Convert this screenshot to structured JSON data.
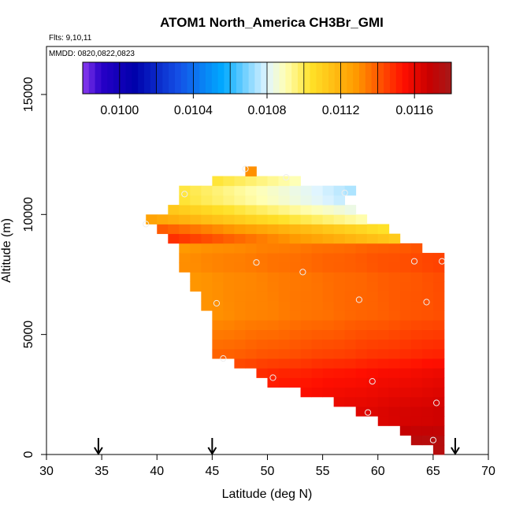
{
  "chart_data": {
    "type": "heatmap",
    "title": "ATOM1 North_America CH3Br_GMI",
    "annotations": {
      "flights": "Flts: 9,10,11",
      "dates": "MMDD: 0820,0822,0823"
    },
    "xlabel": "Latitude (deg N)",
    "ylabel": "Altitude (m)",
    "xlim": [
      30,
      70
    ],
    "ylim": [
      0,
      17000
    ],
    "x_ticks": [
      "30",
      "35",
      "40",
      "45",
      "50",
      "55",
      "60",
      "65",
      "70"
    ],
    "y_ticks": [
      "0",
      "5000",
      "10000",
      "15000"
    ],
    "colorbar": {
      "range": [
        0.0098,
        0.0118
      ],
      "tick_values": [
        0.01,
        0.0104,
        0.0108,
        0.0112,
        0.0116
      ],
      "tick_labels": [
        "0.0100",
        "0.0104",
        "0.0108",
        "0.0112",
        "0.0116"
      ]
    },
    "grid": false,
    "cell_size": {
      "lat_deg": 1.0,
      "alt_m": 400
    },
    "vertical_profile_latitudes": [
      34.7,
      45.0,
      67.0
    ],
    "profiles": [
      {
        "alt_min": 0,
        "alt_max": 400,
        "lat_min": 65,
        "lat_max": 66,
        "value": 0.01168
      },
      {
        "alt_min": 400,
        "alt_max": 800,
        "lat_min": 63,
        "lat_max": 66,
        "value": 0.01168
      },
      {
        "alt_min": 800,
        "alt_max": 1200,
        "lat_min": 62,
        "lat_max": 66,
        "value": 0.01164
      },
      {
        "alt_min": 1200,
        "alt_max": 1600,
        "lat_min": 60,
        "lat_max": 66,
        "value": 0.0116
      },
      {
        "alt_min": 1600,
        "alt_max": 2000,
        "lat_min": 58,
        "lat_max": 66,
        "value": 0.0116
      },
      {
        "alt_min": 2000,
        "alt_max": 2400,
        "lat_min": 56,
        "lat_max": 66,
        "value": 0.01158
      },
      {
        "alt_min": 2400,
        "alt_max": 2800,
        "lat_min": 53,
        "lat_max": 66,
        "value": 0.01156
      },
      {
        "alt_min": 2800,
        "alt_max": 3200,
        "lat_min": 50,
        "lat_max": 66,
        "value": 0.01154
      },
      {
        "alt_min": 3200,
        "alt_max": 3600,
        "lat_min": 49,
        "lat_max": 66,
        "value": 0.01152
      },
      {
        "alt_min": 3600,
        "alt_max": 4000,
        "lat_min": 47,
        "lat_max": 66,
        "value": 0.01148
      },
      {
        "alt_min": 4000,
        "alt_max": 4400,
        "lat_min": 45,
        "lat_max": 66,
        "value": 0.01144
      },
      {
        "alt_min": 4400,
        "alt_max": 4800,
        "lat_min": 45,
        "lat_max": 66,
        "value": 0.01142
      },
      {
        "alt_min": 4800,
        "alt_max": 5200,
        "lat_min": 45,
        "lat_max": 66,
        "value": 0.0114
      },
      {
        "alt_min": 5200,
        "alt_max": 5600,
        "lat_min": 45,
        "lat_max": 66,
        "value": 0.01138
      },
      {
        "alt_min": 5600,
        "alt_max": 6000,
        "lat_min": 45,
        "lat_max": 66,
        "value": 0.01136
      },
      {
        "alt_min": 6000,
        "alt_max": 6400,
        "lat_min": 44,
        "lat_max": 66,
        "value": 0.01136
      },
      {
        "alt_min": 6400,
        "alt_max": 6800,
        "lat_min": 44,
        "lat_max": 66,
        "value": 0.01136
      },
      {
        "alt_min": 6800,
        "alt_max": 7200,
        "lat_min": 43,
        "lat_max": 66,
        "value": 0.01136
      },
      {
        "alt_min": 7200,
        "alt_max": 7600,
        "lat_min": 43,
        "lat_max": 66,
        "value": 0.01136
      },
      {
        "alt_min": 7600,
        "alt_max": 8000,
        "lat_min": 42,
        "lat_max": 66,
        "value": 0.01138
      },
      {
        "alt_min": 8000,
        "alt_max": 8400,
        "lat_min": 42,
        "lat_max": 66,
        "value": 0.01138
      },
      {
        "alt_min": 8400,
        "alt_max": 8800,
        "lat_min": 42,
        "lat_max": 64,
        "value": 0.01136
      },
      {
        "alt_min": 8800,
        "alt_max": 9200,
        "lat_min": 41,
        "lat_max": 62,
        "value": 0.0113
      },
      {
        "alt_min": 9200,
        "alt_max": 9600,
        "lat_min": 40,
        "lat_max": 61,
        "value": 0.01122
      },
      {
        "alt_min": 9600,
        "alt_max": 10000,
        "lat_min": 39,
        "lat_max": 59,
        "value": 0.01108
      },
      {
        "alt_min": 10000,
        "alt_max": 10400,
        "lat_min": 41,
        "lat_max": 58,
        "value": 0.01098
      },
      {
        "alt_min": 10400,
        "alt_max": 10800,
        "lat_min": 42,
        "lat_max": 57,
        "value": 0.0109
      },
      {
        "alt_min": 10800,
        "alt_max": 11200,
        "lat_min": 42,
        "lat_max": 58,
        "value": 0.01088
      },
      {
        "alt_min": 11200,
        "alt_max": 11600,
        "lat_min": 45,
        "lat_max": 53,
        "value": 0.01096
      },
      {
        "alt_min": 11600,
        "alt_max": 12000,
        "lat_min": 48,
        "lat_max": 49,
        "value": 0.0113
      }
    ],
    "sample_points": [
      {
        "lat": 48.0,
        "alt": 11900
      },
      {
        "lat": 51.7,
        "alt": 11550
      },
      {
        "lat": 42.5,
        "alt": 10850
      },
      {
        "lat": 57.0,
        "alt": 10900
      },
      {
        "lat": 39.0,
        "alt": 9600
      },
      {
        "lat": 49.0,
        "alt": 8000
      },
      {
        "lat": 53.2,
        "alt": 7600
      },
      {
        "lat": 63.3,
        "alt": 8050
      },
      {
        "lat": 65.8,
        "alt": 8050
      },
      {
        "lat": 58.3,
        "alt": 6450
      },
      {
        "lat": 64.4,
        "alt": 6350
      },
      {
        "lat": 45.4,
        "alt": 6300
      },
      {
        "lat": 46.0,
        "alt": 4000
      },
      {
        "lat": 50.5,
        "alt": 3200
      },
      {
        "lat": 59.5,
        "alt": 3050
      },
      {
        "lat": 65.3,
        "alt": 2150
      },
      {
        "lat": 59.1,
        "alt": 1750
      },
      {
        "lat": 65.0,
        "alt": 600
      }
    ]
  }
}
